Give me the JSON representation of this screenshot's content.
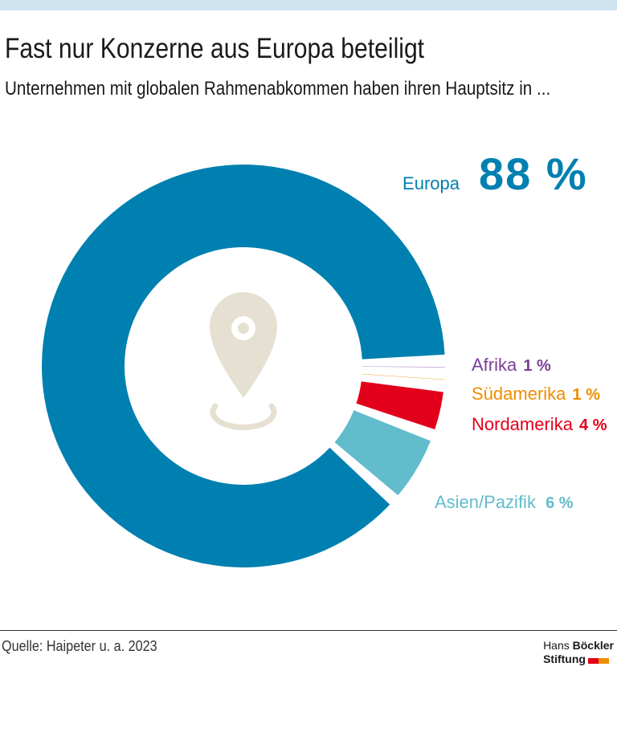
{
  "title": "Fast nur Konzerne aus Europa beteiligt",
  "subtitle": "Unternehmen mit globalen Rahmenabkommen haben ihren Hauptsitz in ...",
  "source": "Quelle: Haipeter u. a. 2023",
  "logo": {
    "line1_regular": "Hans",
    "line1_bold": "Böckler",
    "line2_bold": "Stiftung",
    "colors": [
      "#e2001a",
      "#f08c00"
    ]
  },
  "icon": {
    "name": "location-pin-icon",
    "color": "#e6e0d2"
  },
  "chart_data": {
    "type": "pie",
    "style": "donut",
    "unit": "%",
    "slices": [
      {
        "label": "Europa",
        "value": 88,
        "display": "88 %",
        "color": "#0080b0"
      },
      {
        "label": "Afrika",
        "value": 1,
        "display": "1 %",
        "color": "#7b3f98"
      },
      {
        "label": "Südamerika",
        "value": 1,
        "display": "1 %",
        "color": "#f08c00"
      },
      {
        "label": "Nordamerika",
        "value": 4,
        "display": "4 %",
        "color": "#e2001a"
      },
      {
        "label": "Asien/Pazifik",
        "value": 6,
        "display": "6 %",
        "color": "#62bccb"
      }
    ]
  }
}
